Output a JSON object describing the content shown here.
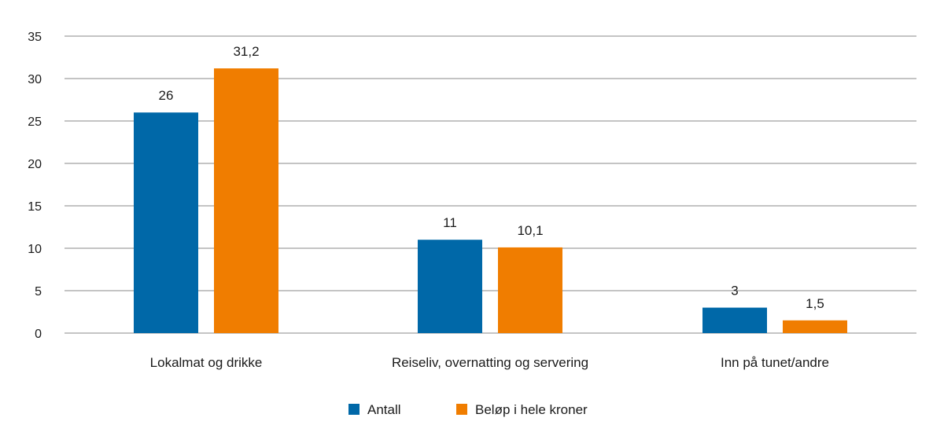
{
  "chart_data": {
    "type": "bar",
    "categories": [
      "Lokalmat og drikke",
      "Reiseliv, overnatting og servering",
      "Inn på tunet/andre"
    ],
    "series": [
      {
        "name": "Antall",
        "color": "#0068a8",
        "values": [
          26,
          11,
          3
        ],
        "labels": [
          "26",
          "11",
          "3"
        ]
      },
      {
        "name": "Beløp i hele kroner",
        "color": "#f07d00",
        "values": [
          31.2,
          10.1,
          1.5
        ],
        "labels": [
          "31,2",
          "10,1",
          "1,5"
        ]
      }
    ],
    "ylim": [
      0,
      35
    ],
    "yticks": [
      0,
      5,
      10,
      15,
      20,
      25,
      30,
      35
    ],
    "ytick_labels": [
      "0",
      "5",
      "10",
      "15",
      "20",
      "25",
      "30",
      "35"
    ],
    "grid": true,
    "legend_position": "bottom-center",
    "title": "",
    "xlabel": "",
    "ylabel": ""
  }
}
